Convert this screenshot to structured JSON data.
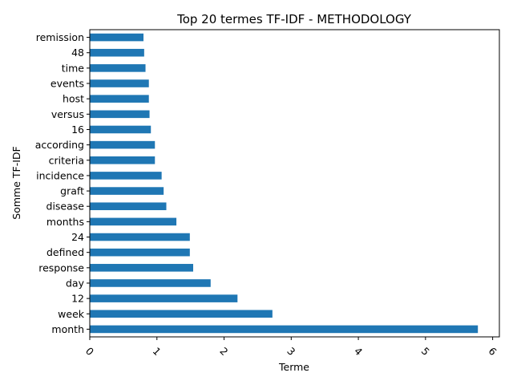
{
  "chart_data": {
    "type": "bar",
    "orientation": "horizontal",
    "title": "Top 20 termes TF-IDF - METHODOLOGY",
    "xlabel": "Terme",
    "ylabel": "Somme TF-IDF",
    "xlim": [
      0,
      6.1
    ],
    "xticks": [
      0,
      1,
      2,
      3,
      4,
      5,
      6
    ],
    "xtick_rotation": 45,
    "grid": false,
    "bar_color": "#1f77b4",
    "categories": [
      "month",
      "week",
      "12",
      "day",
      "response",
      "defined",
      "24",
      "months",
      "disease",
      "graft",
      "incidence",
      "criteria",
      "according",
      "16",
      "versus",
      "host",
      "events",
      "time",
      "48",
      "remission"
    ],
    "values": [
      5.78,
      2.72,
      2.2,
      1.8,
      1.54,
      1.49,
      1.49,
      1.29,
      1.14,
      1.1,
      1.07,
      0.97,
      0.97,
      0.91,
      0.89,
      0.88,
      0.88,
      0.83,
      0.81,
      0.8
    ]
  }
}
